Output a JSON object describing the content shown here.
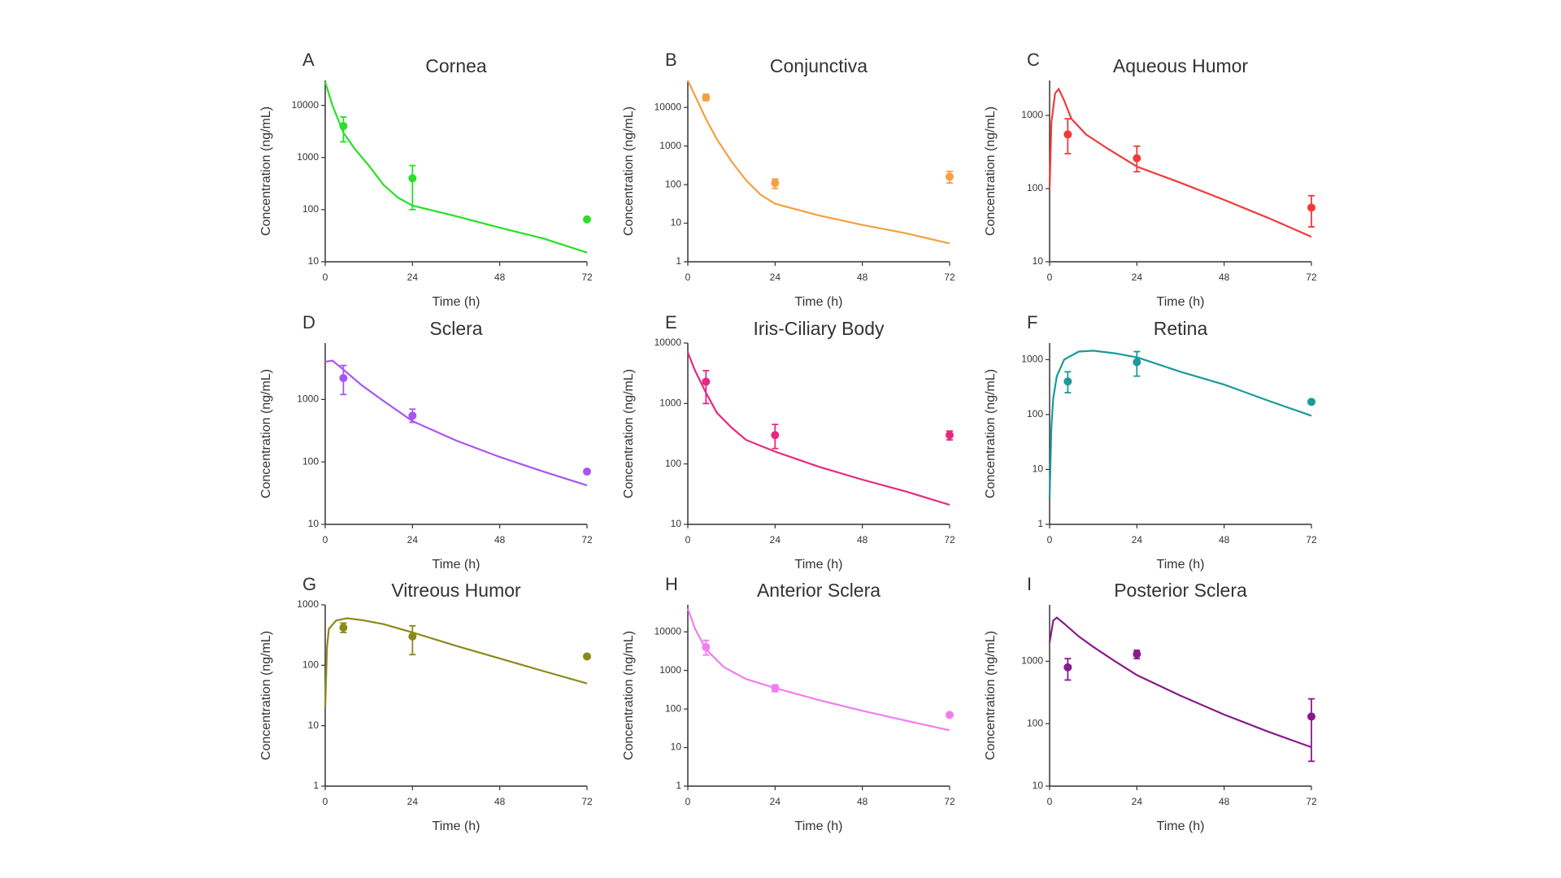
{
  "chart_data": [
    {
      "type": "line",
      "label": "A",
      "title": "Cornea",
      "x_label": "Time (h)",
      "y_label": "Concentration (ng/mL)",
      "log_y": true,
      "color": "#27e027",
      "xlim": [
        0,
        72
      ],
      "xticks": [
        0,
        24,
        48,
        72
      ],
      "ylim": [
        10,
        30000
      ],
      "yticks": [
        10,
        100,
        1000,
        10000
      ],
      "series": [
        {
          "x": [
            0,
            2,
            5,
            8,
            12,
            16,
            20,
            24,
            36,
            48,
            60,
            72
          ],
          "values": [
            28000,
            10000,
            3000,
            1500,
            700,
            300,
            170,
            120,
            75,
            45,
            28,
            15
          ]
        }
      ],
      "points": {
        "x": [
          5,
          24,
          72
        ],
        "values": [
          4000,
          400,
          65
        ],
        "lower": [
          2000,
          100,
          null
        ],
        "upper": [
          6000,
          700,
          null
        ]
      }
    },
    {
      "type": "line",
      "label": "B",
      "title": "Conjunctiva",
      "x_label": "Time (h)",
      "y_label": "Concentration (ng/mL)",
      "log_y": true,
      "color": "#f5a040",
      "xlim": [
        0,
        72
      ],
      "xticks": [
        0,
        24,
        48,
        72
      ],
      "ylim": [
        1,
        50000
      ],
      "yticks": [
        1,
        10,
        100,
        1000,
        10000
      ],
      "series": [
        {
          "x": [
            0,
            2,
            5,
            8,
            12,
            16,
            20,
            24,
            36,
            48,
            60,
            72
          ],
          "values": [
            50000,
            20000,
            5000,
            1500,
            400,
            130,
            55,
            32,
            16,
            9,
            5.5,
            3
          ]
        }
      ],
      "points": {
        "x": [
          5,
          24,
          72
        ],
        "values": [
          18000,
          110,
          160
        ],
        "lower": [
          15000,
          80,
          110
        ],
        "upper": [
          22000,
          140,
          220
        ]
      }
    },
    {
      "type": "line",
      "label": "C",
      "title": "Aqueous Humor",
      "x_label": "Time (h)",
      "y_label": "Concentration (ng/mL)",
      "log_y": true,
      "color": "#f03a3a",
      "xlim": [
        0,
        72
      ],
      "xticks": [
        0,
        24,
        48,
        72
      ],
      "ylim": [
        10,
        3000
      ],
      "yticks": [
        10,
        100,
        1000
      ],
      "series": [
        {
          "x": [
            0,
            0.5,
            1.5,
            2.5,
            4,
            6,
            10,
            16,
            24,
            36,
            48,
            60,
            72
          ],
          "values": [
            100,
            800,
            2000,
            2300,
            1600,
            900,
            550,
            350,
            200,
            120,
            70,
            40,
            22
          ]
        }
      ],
      "points": {
        "x": [
          5,
          24,
          72
        ],
        "values": [
          550,
          260,
          55
        ],
        "lower": [
          300,
          170,
          30
        ],
        "upper": [
          900,
          380,
          80
        ]
      }
    },
    {
      "type": "line",
      "label": "D",
      "title": "Sclera",
      "x_label": "Time (h)",
      "y_label": "Concentration (ng/mL)",
      "log_y": true,
      "color": "#a855f7",
      "xlim": [
        0,
        72
      ],
      "xticks": [
        0,
        24,
        48,
        72
      ],
      "ylim": [
        10,
        8000
      ],
      "yticks": [
        10,
        100,
        1000
      ],
      "series": [
        {
          "x": [
            0,
            2,
            5,
            10,
            16,
            24,
            36,
            48,
            60,
            72
          ],
          "values": [
            4000,
            4200,
            3000,
            1700,
            950,
            450,
            220,
            120,
            70,
            42
          ]
        }
      ],
      "points": {
        "x": [
          5,
          24,
          72
        ],
        "values": [
          2200,
          550,
          70
        ],
        "lower": [
          1200,
          430,
          null
        ],
        "upper": [
          3500,
          700,
          null
        ]
      }
    },
    {
      "type": "line",
      "label": "E",
      "title": "Iris-Ciliary Body",
      "x_label": "Time (h)",
      "y_label": "Concentration (ng/mL)",
      "log_y": true,
      "color": "#e8287f",
      "xlim": [
        0,
        72
      ],
      "xticks": [
        0,
        24,
        48,
        72
      ],
      "ylim": [
        10,
        10000
      ],
      "yticks": [
        10,
        100,
        1000,
        10000
      ],
      "series": [
        {
          "x": [
            0,
            2,
            5,
            8,
            12,
            16,
            24,
            36,
            48,
            60,
            72
          ],
          "values": [
            7000,
            3500,
            1500,
            700,
            400,
            250,
            160,
            90,
            55,
            35,
            21
          ]
        }
      ],
      "points": {
        "x": [
          5,
          24,
          72
        ],
        "values": [
          2300,
          300,
          300
        ],
        "lower": [
          1000,
          180,
          250
        ],
        "upper": [
          3500,
          450,
          350
        ]
      }
    },
    {
      "type": "line",
      "label": "F",
      "title": "Retina",
      "x_label": "Time (h)",
      "y_label": "Concentration (ng/mL)",
      "log_y": true,
      "color": "#1a9a9a",
      "xlim": [
        0,
        72
      ],
      "xticks": [
        0,
        24,
        48,
        72
      ],
      "ylim": [
        1,
        2000
      ],
      "yticks": [
        1,
        10,
        100,
        1000
      ],
      "series": [
        {
          "x": [
            0,
            0.5,
            1,
            2,
            4,
            8,
            12,
            18,
            24,
            36,
            48,
            60,
            72
          ],
          "values": [
            3,
            60,
            200,
            500,
            1000,
            1400,
            1450,
            1300,
            1100,
            600,
            350,
            180,
            95
          ]
        }
      ],
      "points": {
        "x": [
          5,
          24,
          72
        ],
        "values": [
          400,
          900,
          170
        ],
        "lower": [
          250,
          500,
          null
        ],
        "upper": [
          600,
          1400,
          null
        ]
      }
    },
    {
      "type": "line",
      "label": "G",
      "title": "Vitreous Humor",
      "x_label": "Time (h)",
      "y_label": "Concentration (ng/mL)",
      "log_y": true,
      "color": "#8a8a1a",
      "xlim": [
        0,
        72
      ],
      "xticks": [
        0,
        24,
        48,
        72
      ],
      "ylim": [
        1,
        1000
      ],
      "yticks": [
        1,
        10,
        100,
        1000
      ],
      "series": [
        {
          "x": [
            0,
            0.5,
            1,
            3,
            6,
            10,
            16,
            24,
            36,
            48,
            60,
            72
          ],
          "values": [
            20,
            200,
            400,
            550,
            600,
            560,
            480,
            350,
            210,
            130,
            80,
            50
          ]
        }
      ],
      "points": {
        "x": [
          5,
          24,
          72
        ],
        "values": [
          420,
          300,
          140
        ],
        "lower": [
          350,
          150,
          null
        ],
        "upper": [
          500,
          450,
          null
        ]
      }
    },
    {
      "type": "line",
      "label": "H",
      "title": "Anterior Sclera",
      "x_label": "Time (h)",
      "y_label": "Concentration (ng/mL)",
      "log_y": true,
      "color": "#f07ef0",
      "xlim": [
        0,
        72
      ],
      "xticks": [
        0,
        24,
        48,
        72
      ],
      "ylim": [
        1,
        50000
      ],
      "yticks": [
        1,
        10,
        100,
        1000,
        10000
      ],
      "series": [
        {
          "x": [
            0,
            2,
            5,
            10,
            16,
            24,
            36,
            48,
            60,
            72
          ],
          "values": [
            40000,
            12000,
            3500,
            1200,
            600,
            350,
            170,
            90,
            50,
            28
          ]
        }
      ],
      "points": {
        "x": [
          5,
          24,
          72
        ],
        "values": [
          4000,
          350,
          70
        ],
        "lower": [
          2500,
          280,
          null
        ],
        "upper": [
          6000,
          420,
          null
        ]
      }
    },
    {
      "type": "line",
      "label": "I",
      "title": "Posterior Sclera",
      "x_label": "Time (h)",
      "y_label": "Concentration (ng/mL)",
      "log_y": true,
      "color": "#8a1a8a",
      "xlim": [
        0,
        72
      ],
      "xticks": [
        0,
        24,
        48,
        72
      ],
      "ylim": [
        10,
        8000
      ],
      "yticks": [
        10,
        100,
        1000
      ],
      "series": [
        {
          "x": [
            0,
            1,
            2,
            4,
            8,
            12,
            18,
            24,
            36,
            48,
            60,
            72
          ],
          "values": [
            2000,
            4500,
            5000,
            4000,
            2500,
            1700,
            1000,
            600,
            280,
            140,
            75,
            42
          ]
        }
      ],
      "points": {
        "x": [
          5,
          24,
          72
        ],
        "values": [
          800,
          1300,
          130
        ],
        "lower": [
          500,
          1100,
          25
        ],
        "upper": [
          1100,
          1500,
          250
        ]
      }
    }
  ]
}
